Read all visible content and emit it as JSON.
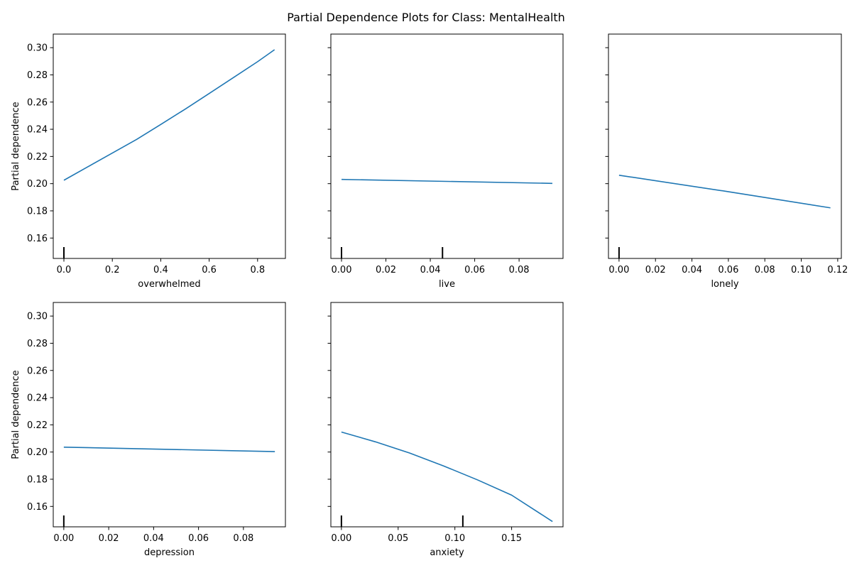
{
  "figure": {
    "title": "Partial Dependence Plots for Class: MentalHealth"
  },
  "colors": {
    "line": "#1f77b4",
    "axes": "#000000",
    "background": "#ffffff"
  },
  "chart_data": [
    {
      "type": "line",
      "xlabel": "overwhelmed",
      "ylabel": "Partial dependence",
      "xlim": [
        -0.044,
        0.915
      ],
      "ylim": [
        0.145,
        0.31
      ],
      "xticks": [
        0.0,
        0.2,
        0.4,
        0.6,
        0.8
      ],
      "xtick_labels": [
        "0.0",
        "0.2",
        "0.4",
        "0.6",
        "0.8"
      ],
      "yticks": [
        0.16,
        0.18,
        0.2,
        0.22,
        0.24,
        0.26,
        0.28,
        0.3
      ],
      "ytick_labels": [
        "0.16",
        "0.18",
        "0.20",
        "0.22",
        "0.24",
        "0.26",
        "0.28",
        "0.30"
      ],
      "show_ytick_labels": true,
      "x": [
        0.0,
        0.1,
        0.2,
        0.3,
        0.4,
        0.5,
        0.6,
        0.7,
        0.8,
        0.87
      ],
      "y": [
        0.2025,
        0.2125,
        0.2225,
        0.2325,
        0.2435,
        0.2547,
        0.2663,
        0.278,
        0.2897,
        0.2985
      ],
      "deciles": [
        0.0
      ]
    },
    {
      "type": "line",
      "xlabel": "live",
      "ylabel": "",
      "xlim": [
        -0.0048,
        0.0998
      ],
      "ylim": [
        0.145,
        0.31
      ],
      "xticks": [
        0.0,
        0.02,
        0.04,
        0.06,
        0.08
      ],
      "xtick_labels": [
        "0.00",
        "0.02",
        "0.04",
        "0.06",
        "0.08"
      ],
      "yticks": [
        0.16,
        0.18,
        0.2,
        0.22,
        0.24,
        0.26,
        0.28,
        0.3
      ],
      "ytick_labels": [
        "0.16",
        "0.18",
        "0.20",
        "0.22",
        "0.24",
        "0.26",
        "0.28",
        "0.30"
      ],
      "show_ytick_labels": false,
      "x": [
        0.0,
        0.095
      ],
      "y": [
        0.2031,
        0.2002
      ],
      "deciles": [
        0.0,
        0.0455
      ]
    },
    {
      "type": "line",
      "xlabel": "lonely",
      "ylabel": "",
      "xlim": [
        -0.0058,
        0.122
      ],
      "ylim": [
        0.145,
        0.31
      ],
      "xticks": [
        0.0,
        0.02,
        0.04,
        0.06,
        0.08,
        0.1,
        0.12
      ],
      "xtick_labels": [
        "0.00",
        "0.02",
        "0.04",
        "0.06",
        "0.08",
        "0.10",
        "0.12"
      ],
      "yticks": [
        0.16,
        0.18,
        0.2,
        0.22,
        0.24,
        0.26,
        0.28,
        0.3
      ],
      "ytick_labels": [
        "0.16",
        "0.18",
        "0.20",
        "0.22",
        "0.24",
        "0.26",
        "0.28",
        "0.30"
      ],
      "show_ytick_labels": false,
      "x": [
        0.0,
        0.058,
        0.116
      ],
      "y": [
        0.2062,
        0.1945,
        0.1822
      ],
      "deciles": [
        0.0
      ]
    },
    {
      "type": "line",
      "xlabel": "depression",
      "ylabel": "Partial dependence",
      "xlim": [
        -0.0047,
        0.0987
      ],
      "ylim": [
        0.145,
        0.31
      ],
      "xticks": [
        0.0,
        0.02,
        0.04,
        0.06,
        0.08
      ],
      "xtick_labels": [
        "0.00",
        "0.02",
        "0.04",
        "0.06",
        "0.08"
      ],
      "yticks": [
        0.16,
        0.18,
        0.2,
        0.22,
        0.24,
        0.26,
        0.28,
        0.3
      ],
      "ytick_labels": [
        "0.16",
        "0.18",
        "0.20",
        "0.22",
        "0.24",
        "0.26",
        "0.28",
        "0.30"
      ],
      "show_ytick_labels": true,
      "x": [
        0.0,
        0.094
      ],
      "y": [
        0.2036,
        0.2003
      ],
      "deciles": [
        0.0
      ]
    },
    {
      "type": "line",
      "xlabel": "anxiety",
      "ylabel": "",
      "xlim": [
        -0.0093,
        0.1953
      ],
      "ylim": [
        0.145,
        0.31
      ],
      "xticks": [
        0.0,
        0.05,
        0.1,
        0.15
      ],
      "xtick_labels": [
        "0.00",
        "0.05",
        "0.10",
        "0.15"
      ],
      "yticks": [
        0.16,
        0.18,
        0.2,
        0.22,
        0.24,
        0.26,
        0.28,
        0.3
      ],
      "ytick_labels": [
        "0.16",
        "0.18",
        "0.20",
        "0.22",
        "0.24",
        "0.26",
        "0.28",
        "0.30"
      ],
      "show_ytick_labels": false,
      "x": [
        0.0,
        0.03,
        0.06,
        0.09,
        0.12,
        0.15,
        0.186
      ],
      "y": [
        0.2147,
        0.2075,
        0.1993,
        0.1898,
        0.1795,
        0.1683,
        0.1489
      ],
      "deciles": [
        0.0,
        0.107
      ]
    }
  ]
}
